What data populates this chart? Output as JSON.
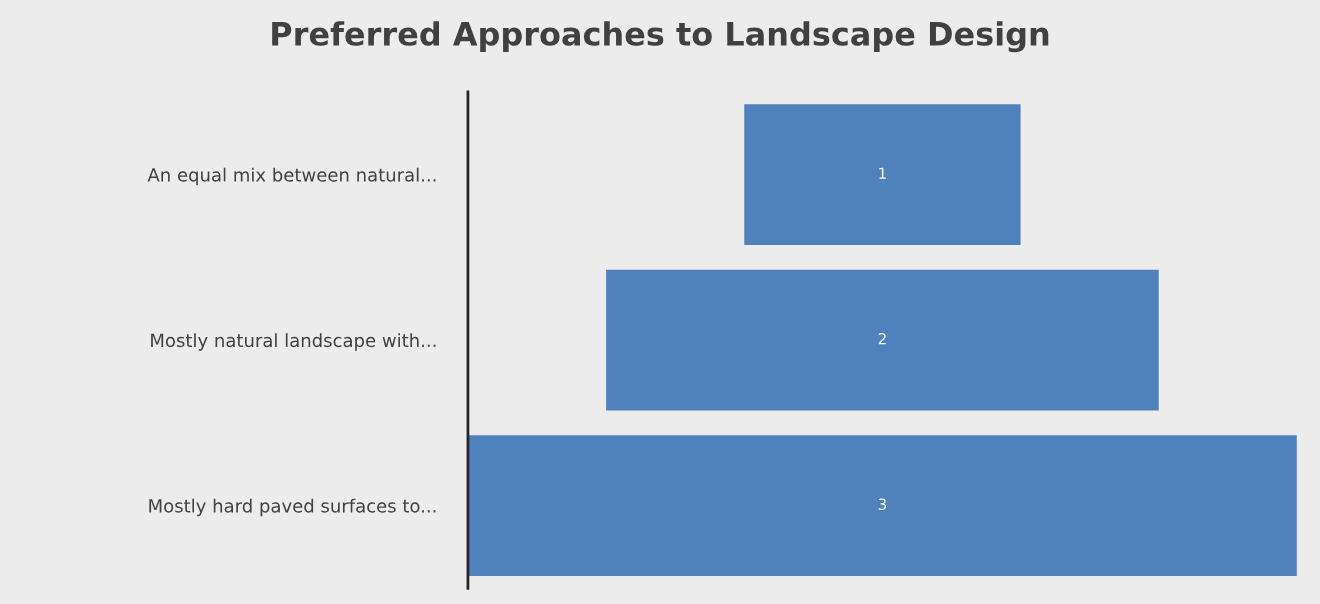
{
  "chart_data": {
    "type": "other",
    "title": "Preferred Approaches to Landscape Design",
    "categories": [
      "An equal mix between natural...",
      "Mostly natural landscape with...",
      "Mostly hard paved surfaces to..."
    ],
    "values": [
      1,
      2,
      3
    ],
    "color": "#4f81bd",
    "data_labels": true
  }
}
